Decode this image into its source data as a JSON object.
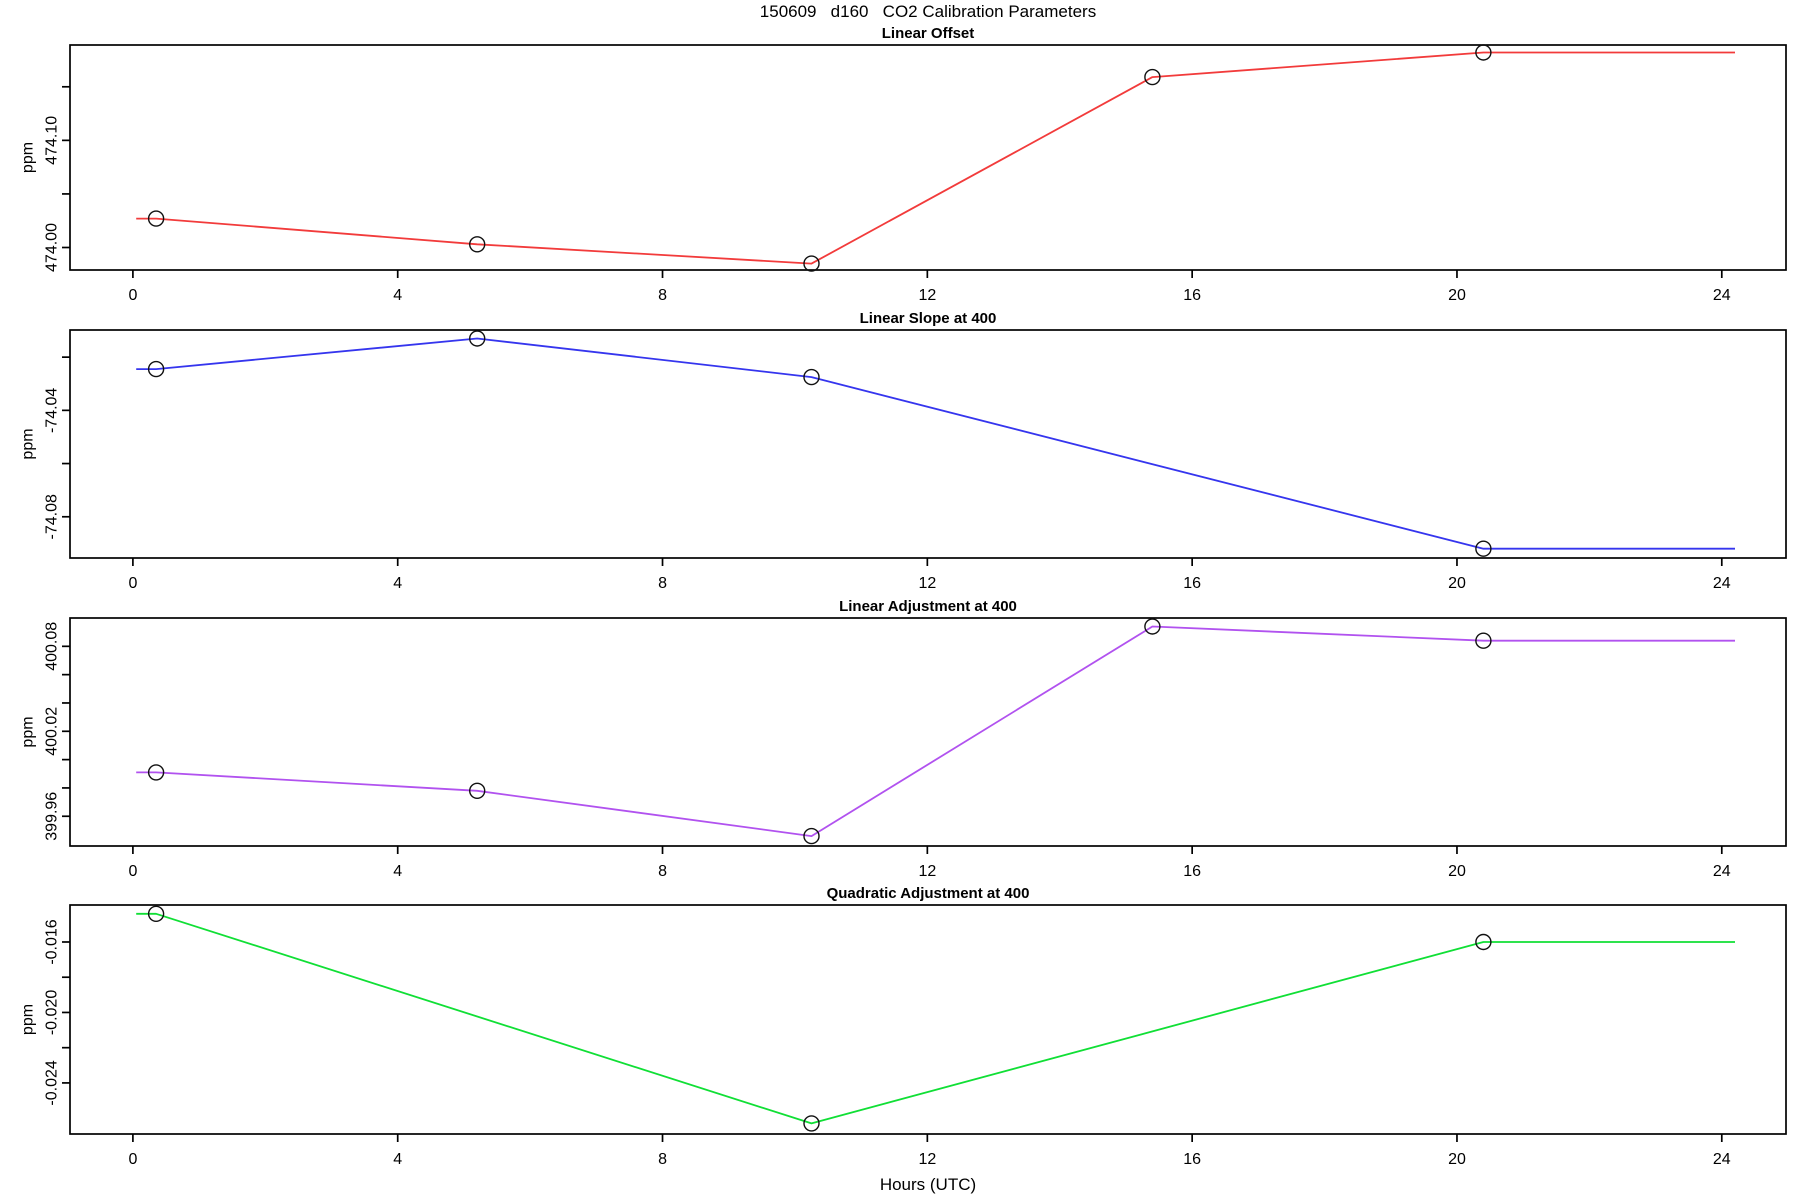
{
  "figure_title": "150609   d160   CO2 Calibration Parameters",
  "chart_data": {
    "type": "line",
    "title": "150609   d160   CO2 Calibration Parameters",
    "xlabel": "Hours (UTC)",
    "ylabel": "ppm",
    "grid": false,
    "legend": "none",
    "x": {
      "lim": [
        -0.95,
        24.97
      ],
      "ticks": [
        0,
        4,
        8,
        12,
        16,
        20,
        24
      ]
    },
    "line_extension": {
      "start_hour": 0.05,
      "end_hour": 24.2
    },
    "frame_color": "#000000",
    "point_color": "#111111",
    "panels": [
      {
        "title": "Linear Offset",
        "color": "#f23b3b",
        "ylabel": "ppm",
        "ylim": [
          473.979,
          474.189
        ],
        "yticks": [
          {
            "value": 474.0,
            "label": "474.00"
          },
          {
            "value": 474.05,
            "label": ""
          },
          {
            "value": 474.1,
            "label": "474.10"
          },
          {
            "value": 474.15,
            "label": ""
          }
        ],
        "series": {
          "x": [
            0.35,
            5.2,
            10.25,
            15.4,
            20.4
          ],
          "y": [
            474.027,
            474.003,
            473.985,
            474.159,
            474.182
          ]
        }
      },
      {
        "title": "Linear Slope at 400",
        "color": "#3535ee",
        "ylabel": "ppm",
        "ylim": [
          -74.0955,
          -74.0098
        ],
        "yticks": [
          {
            "value": -74.08,
            "label": "-74.08"
          },
          {
            "value": -74.06,
            "label": ""
          },
          {
            "value": -74.04,
            "label": "-74.04"
          },
          {
            "value": -74.02,
            "label": ""
          }
        ],
        "series": {
          "x": [
            0.35,
            5.2,
            10.25,
            20.4
          ],
          "y": [
            -74.0245,
            -74.013,
            -74.0275,
            -74.092
          ]
        }
      },
      {
        "title": "Linear Adjustment at 400",
        "color": "#b152ef",
        "ylabel": "ppm",
        "ylim": [
          399.939,
          400.1
        ],
        "yticks": [
          {
            "value": 399.96,
            "label": "399.96"
          },
          {
            "value": 399.98,
            "label": ""
          },
          {
            "value": 400.0,
            "label": ""
          },
          {
            "value": 400.02,
            "label": "400.02"
          },
          {
            "value": 400.04,
            "label": ""
          },
          {
            "value": 400.06,
            "label": ""
          },
          {
            "value": 400.08,
            "label": "400.08"
          }
        ],
        "series": {
          "x": [
            0.35,
            5.2,
            10.25,
            15.4,
            20.4
          ],
          "y": [
            399.991,
            399.978,
            399.946,
            400.094,
            400.084
          ]
        }
      },
      {
        "title": "Quadratic Adjustment at 400",
        "color": "#10df35",
        "ylabel": "ppm",
        "ylim": [
          -0.0269,
          -0.0139
        ],
        "yticks": [
          {
            "value": -0.024,
            "label": "-0.024"
          },
          {
            "value": -0.022,
            "label": ""
          },
          {
            "value": -0.02,
            "label": "-0.020"
          },
          {
            "value": -0.018,
            "label": ""
          },
          {
            "value": -0.016,
            "label": "-0.016"
          }
        ],
        "series": {
          "x": [
            0.35,
            10.25,
            20.4
          ],
          "y": [
            -0.0144,
            -0.0263,
            -0.016
          ]
        }
      }
    ]
  }
}
